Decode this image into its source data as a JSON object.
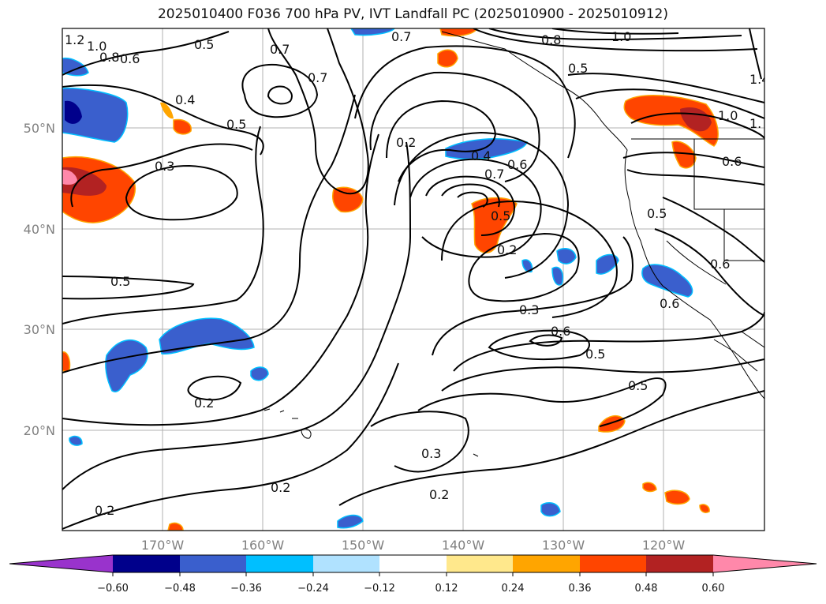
{
  "title": "2025010400 F036 700 hPa PV, IVT Landfall PC (2025010900 - 2025010912)",
  "map": {
    "lat_labels": [
      "50°N",
      "40°N",
      "30°N",
      "20°N"
    ],
    "lon_labels": [
      "170°W",
      "160°W",
      "150°W",
      "140°W",
      "130°W",
      "120°W"
    ],
    "gridlines": true,
    "contour_color": "#000000",
    "contour_labels": [
      "1.2",
      "1.0",
      "0.8",
      "0.6",
      "0.5",
      "0.5",
      "0.4",
      "0.7",
      "0.7",
      "0.8",
      "1.0",
      "0.7",
      "1.4",
      "1.0",
      "1.",
      "0.5",
      "0.3",
      "0.2",
      "0.4",
      "0.6",
      "0.7",
      "0.5",
      "0.6",
      "0.5",
      "0.2",
      "0.6",
      "0.6",
      "0.5",
      "0.3",
      "0.6",
      "0.5",
      "0.5",
      "0.2",
      "0.3",
      "0.2",
      "0.2",
      "0.2"
    ]
  },
  "colorbar": {
    "ticks": [
      "−0.60",
      "−0.48",
      "−0.36",
      "−0.24",
      "−0.12",
      "0.12",
      "0.24",
      "0.36",
      "0.48",
      "0.60"
    ],
    "colors": [
      "#9933cc",
      "#00008b",
      "#3a5fcd",
      "#00bfff",
      "#b0e2ff",
      "#ffffff",
      "#ffe88c",
      "#ffa500",
      "#ff4500",
      "#b22222",
      "#ff88aa"
    ]
  }
}
